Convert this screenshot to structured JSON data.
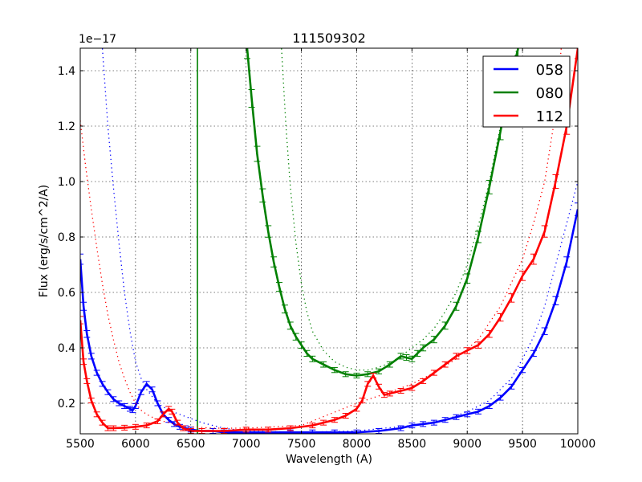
{
  "chart_data": {
    "type": "line",
    "title": "111509302",
    "xlabel": "Wavelength (A)",
    "ylabel": "Flux (erg/s/cm^2/A)",
    "y_offset_label": "1e−17",
    "xlim": [
      5500,
      10000
    ],
    "ylim": [
      0.09,
      1.48
    ],
    "xticks": [
      5500,
      6000,
      6500,
      7000,
      7500,
      8000,
      8500,
      9000,
      9500,
      10000
    ],
    "xtick_labels": [
      "5500",
      "6000",
      "6500",
      "7000",
      "7500",
      "8000",
      "8500",
      "9000",
      "9500",
      "10000"
    ],
    "yticks": [
      0.2,
      0.4,
      0.6,
      0.8,
      1.0,
      1.2,
      1.4
    ],
    "ytick_labels": [
      "0.2",
      "0.4",
      "0.6",
      "0.8",
      "1.0",
      "1.2",
      "1.4"
    ],
    "grid": true,
    "legend_position": "upper right",
    "series": [
      {
        "name": "058",
        "color": "#0000ff",
        "x": [
          5500,
          5530,
          5560,
          5600,
          5650,
          5700,
          5750,
          5800,
          5850,
          5900,
          5950,
          5975,
          6000,
          6050,
          6100,
          6150,
          6200,
          6250,
          6300,
          6350,
          6400,
          6450,
          6500,
          6600,
          6700,
          6800,
          7000,
          7200,
          7400,
          7600,
          7800,
          8000,
          8200,
          8400,
          8500,
          8600,
          8700,
          8800,
          8900,
          9000,
          9100,
          9200,
          9300,
          9400,
          9500,
          9600,
          9700,
          9800,
          9900,
          10000
        ],
        "y": [
          0.72,
          0.55,
          0.45,
          0.37,
          0.31,
          0.27,
          0.24,
          0.215,
          0.2,
          0.19,
          0.18,
          0.175,
          0.19,
          0.24,
          0.27,
          0.25,
          0.2,
          0.16,
          0.14,
          0.125,
          0.115,
          0.11,
          0.105,
          0.1,
          0.1,
          0.095,
          0.095,
          0.095,
          0.095,
          0.095,
          0.095,
          0.095,
          0.1,
          0.11,
          0.12,
          0.125,
          0.13,
          0.14,
          0.15,
          0.16,
          0.17,
          0.19,
          0.22,
          0.26,
          0.32,
          0.38,
          0.46,
          0.57,
          0.71,
          0.9
        ],
        "model_x": [
          5700,
          5750,
          5800,
          5850,
          5900,
          5950,
          6000,
          6050,
          6100,
          6200,
          6300,
          6400,
          6500,
          6600,
          6700,
          6800,
          7000,
          7500,
          8000,
          8500,
          8800,
          9000,
          9200,
          9400,
          9500,
          9600,
          9700,
          9800,
          9900,
          10000
        ],
        "model_y": [
          1.48,
          1.2,
          0.98,
          0.78,
          0.6,
          0.46,
          0.35,
          0.29,
          0.25,
          0.2,
          0.175,
          0.16,
          0.145,
          0.13,
          0.12,
          0.11,
          0.1,
          0.095,
          0.1,
          0.12,
          0.14,
          0.17,
          0.21,
          0.29,
          0.36,
          0.44,
          0.55,
          0.7,
          0.85,
          1.0
        ]
      },
      {
        "name": "080",
        "color": "#008000",
        "x": [
          7010,
          7050,
          7100,
          7150,
          7200,
          7250,
          7300,
          7350,
          7400,
          7450,
          7500,
          7550,
          7600,
          7700,
          7800,
          7900,
          8000,
          8100,
          8200,
          8300,
          8400,
          8450,
          8500,
          8550,
          8600,
          8700,
          8800,
          8900,
          9000,
          9100,
          9200,
          9300,
          9400,
          9460
        ],
        "y": [
          1.48,
          1.3,
          1.1,
          0.95,
          0.82,
          0.71,
          0.62,
          0.54,
          0.48,
          0.44,
          0.41,
          0.38,
          0.36,
          0.34,
          0.32,
          0.305,
          0.3,
          0.305,
          0.315,
          0.34,
          0.37,
          0.365,
          0.36,
          0.38,
          0.4,
          0.43,
          0.48,
          0.55,
          0.65,
          0.8,
          0.98,
          1.18,
          1.38,
          1.48
        ],
        "spike_x": 6560,
        "model_x": [
          7320,
          7360,
          7400,
          7450,
          7500,
          7550,
          7600,
          7700,
          7800,
          7900,
          8000,
          8100,
          8200,
          8300,
          8400,
          8500,
          8600,
          8700,
          8800,
          8900,
          9000,
          9100,
          9200,
          9300,
          9400,
          9450
        ],
        "model_y": [
          1.48,
          1.2,
          0.98,
          0.78,
          0.63,
          0.53,
          0.46,
          0.39,
          0.35,
          0.33,
          0.32,
          0.32,
          0.33,
          0.345,
          0.37,
          0.4,
          0.43,
          0.47,
          0.53,
          0.6,
          0.7,
          0.84,
          1.0,
          1.2,
          1.4,
          1.48
        ]
      },
      {
        "name": "112",
        "color": "#ff0000",
        "x": [
          5500,
          5530,
          5560,
          5600,
          5650,
          5700,
          5750,
          5800,
          5900,
          6000,
          6100,
          6200,
          6250,
          6300,
          6330,
          6380,
          6430,
          6500,
          6600,
          6800,
          7000,
          7200,
          7400,
          7600,
          7700,
          7800,
          7900,
          8000,
          8050,
          8100,
          8150,
          8200,
          8250,
          8300,
          8400,
          8500,
          8600,
          8700,
          8800,
          8900,
          9000,
          9100,
          9200,
          9300,
          9400,
          9500,
          9600,
          9700,
          9800,
          9900,
          10000
        ],
        "y": [
          0.5,
          0.35,
          0.28,
          0.21,
          0.16,
          0.13,
          0.11,
          0.11,
          0.112,
          0.115,
          0.12,
          0.135,
          0.16,
          0.18,
          0.17,
          0.13,
          0.11,
          0.1,
          0.1,
          0.1,
          0.105,
          0.105,
          0.11,
          0.12,
          0.13,
          0.14,
          0.155,
          0.18,
          0.21,
          0.27,
          0.3,
          0.26,
          0.23,
          0.235,
          0.245,
          0.255,
          0.28,
          0.31,
          0.34,
          0.37,
          0.39,
          0.41,
          0.45,
          0.51,
          0.58,
          0.66,
          0.72,
          0.82,
          1.0,
          1.2,
          1.48
        ],
        "model_x": [
          5500,
          5550,
          5600,
          5650,
          5700,
          5750,
          5800,
          5850,
          5900,
          5950,
          6000,
          6050,
          6100,
          6200,
          6300,
          6400,
          6500,
          6700,
          7000,
          7500,
          8000,
          8300,
          8500,
          8700,
          8900,
          9100,
          9300,
          9500,
          9600,
          9700,
          9800,
          9850
        ],
        "model_y": [
          1.22,
          1.05,
          0.9,
          0.76,
          0.63,
          0.52,
          0.43,
          0.35,
          0.29,
          0.24,
          0.2,
          0.175,
          0.16,
          0.14,
          0.13,
          0.12,
          0.115,
          0.11,
          0.11,
          0.12,
          0.2,
          0.24,
          0.27,
          0.31,
          0.36,
          0.43,
          0.55,
          0.72,
          0.85,
          1.0,
          1.25,
          1.48
        ]
      }
    ]
  }
}
